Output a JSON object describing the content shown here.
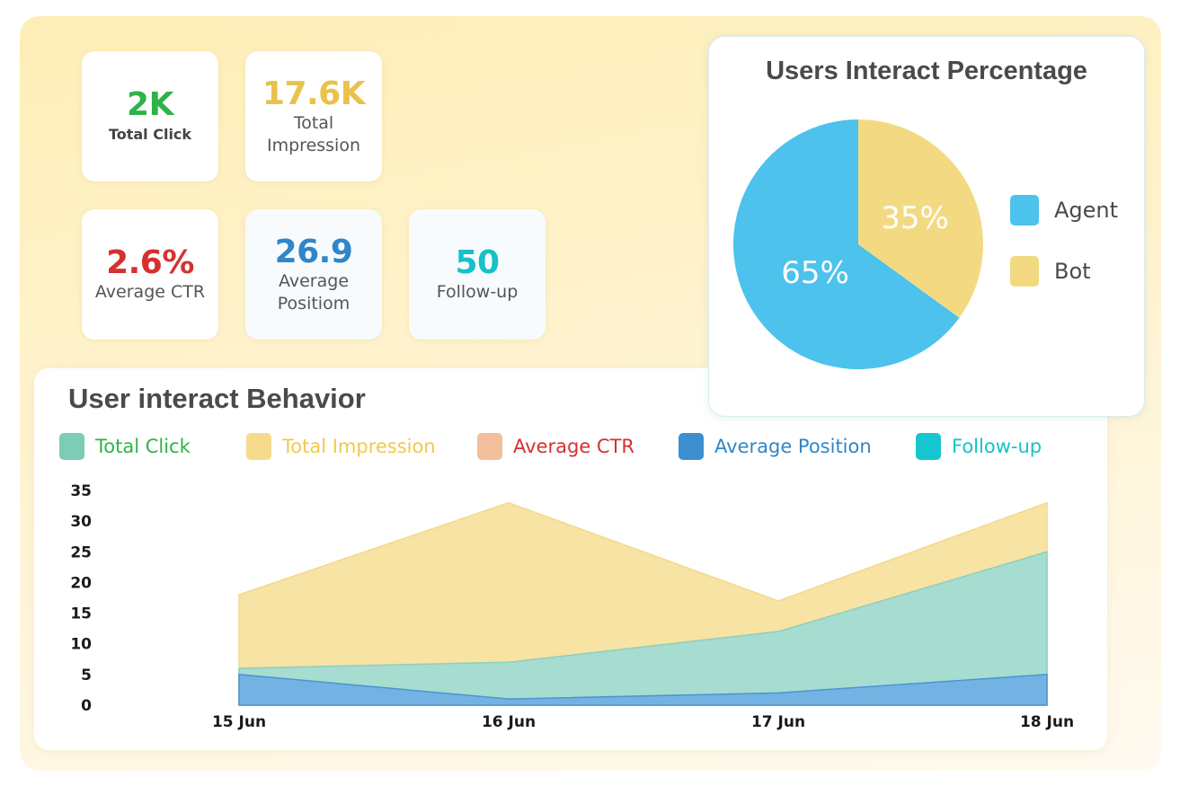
{
  "stats": [
    {
      "value": "2K",
      "label": "Total Click",
      "color": "#2eb34a"
    },
    {
      "value": "17.6K",
      "label": "Total Impression",
      "color": "#e8c24a"
    },
    {
      "value": "2.6%",
      "label": "Average CTR",
      "color": "#d63031"
    },
    {
      "value": "26.9",
      "label": "Average Positiom",
      "color": "#2f86c8"
    },
    {
      "value": "50",
      "label": "Follow-up",
      "color": "#16c1c8"
    }
  ],
  "pie": {
    "title": "Users Interact Percentage",
    "slices": [
      {
        "name": "Agent",
        "value": 65,
        "label": "65%",
        "color": "#4cc2ec"
      },
      {
        "name": "Bot",
        "value": 35,
        "label": "35%",
        "color": "#f3da82"
      }
    ]
  },
  "behavior": {
    "title": "User interact Behavior",
    "legend": [
      {
        "label": "Total Click",
        "swatch": "#7cccb7",
        "text_color": "#2eb34a"
      },
      {
        "label": "Total Impression",
        "swatch": "#f6db8c",
        "text_color": "#f0c94c"
      },
      {
        "label": "Average CTR",
        "swatch": "#f3bf9c",
        "text_color": "#d63031"
      },
      {
        "label": "Average Position",
        "swatch": "#3c8fd0",
        "text_color": "#2f86c8"
      },
      {
        "label": "Follow-up",
        "swatch": "#16c6ce",
        "text_color": "#16c1c8"
      }
    ]
  },
  "chart_data": {
    "type": "area",
    "x": [
      "15 Jun",
      "16 Jun",
      "17 Jun",
      "18 Jun"
    ],
    "yticks": [
      0,
      5,
      10,
      15,
      20,
      25,
      30,
      35
    ],
    "ylim": [
      0,
      35
    ],
    "series": [
      {
        "name": "Total Impression",
        "values": [
          18,
          33,
          17,
          33
        ],
        "color": "#f7e3a3"
      },
      {
        "name": "Total Click",
        "values": [
          6,
          7,
          12,
          25
        ],
        "color": "#a6ddd0"
      },
      {
        "name": "Average Position",
        "values": [
          5,
          1,
          2,
          5
        ],
        "color": "#73b3e3"
      }
    ]
  }
}
